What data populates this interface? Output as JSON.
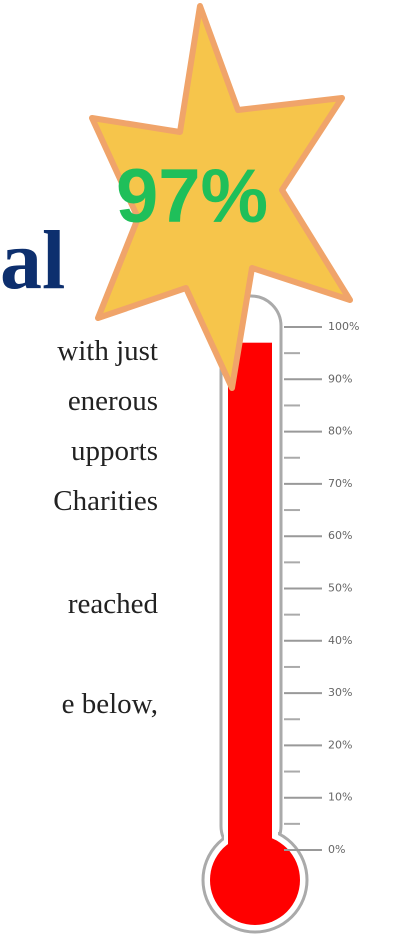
{
  "page_text": {
    "heading": "al",
    "lines": [
      "with just",
      "enerous",
      "upports",
      "Charities",
      "reached",
      "e below,"
    ]
  },
  "chart_data": {
    "type": "thermometer",
    "value": 97,
    "value_label": "97%",
    "color": "#ff0000",
    "label_color": "#1fbf5a",
    "ylim": [
      0,
      100
    ],
    "yticks": [
      {
        "value": 100,
        "label": "100%"
      },
      {
        "value": 90,
        "label": "90%"
      },
      {
        "value": 80,
        "label": "80%"
      },
      {
        "value": 70,
        "label": "70%"
      },
      {
        "value": 60,
        "label": "60%"
      },
      {
        "value": 50,
        "label": "50%"
      },
      {
        "value": 40,
        "label": "40%"
      },
      {
        "value": 30,
        "label": "30%"
      },
      {
        "value": 20,
        "label": "20%"
      },
      {
        "value": 10,
        "label": "10%"
      },
      {
        "value": 0,
        "label": "0%"
      }
    ]
  }
}
